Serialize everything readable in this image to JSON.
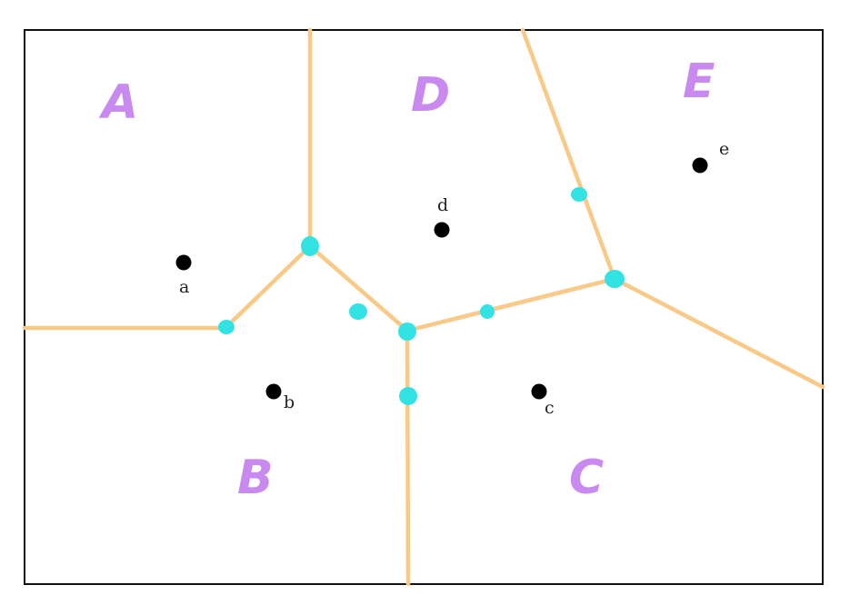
{
  "diagram": {
    "colors": {
      "frame": "#111111",
      "edge": "#f8c987",
      "vertex": "#33e3e3",
      "site": "#000000",
      "region_label": "#c98af0"
    },
    "regions": [
      {
        "key": "A",
        "label": "A"
      },
      {
        "key": "D",
        "label": "D"
      },
      {
        "key": "E",
        "label": "E"
      },
      {
        "key": "B",
        "label": "B"
      },
      {
        "key": "C",
        "label": "C"
      }
    ],
    "sites": [
      {
        "key": "a",
        "label": "a"
      },
      {
        "key": "b",
        "label": "b"
      },
      {
        "key": "c",
        "label": "c"
      },
      {
        "key": "d",
        "label": "d"
      },
      {
        "key": "e",
        "label": "e"
      }
    ]
  }
}
